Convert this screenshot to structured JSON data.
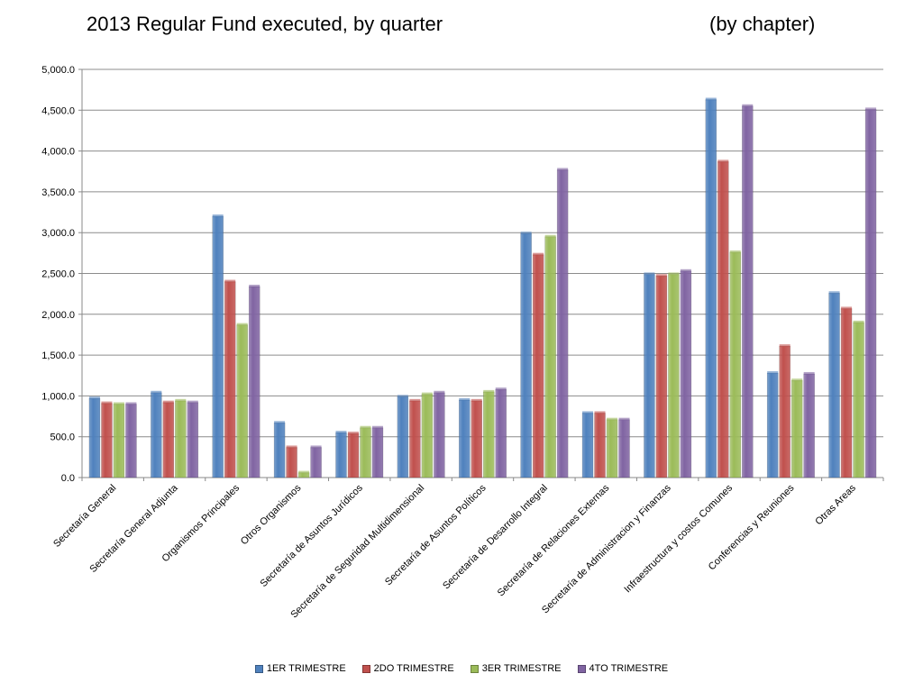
{
  "header": {
    "title": "2013 Regular Fund executed, by quarter",
    "subtitle": "(by chapter)"
  },
  "chart_data": {
    "type": "bar",
    "title": "2013 Regular Fund executed, by quarter",
    "subtitle": "(by chapter)",
    "ylim": [
      0,
      5000
    ],
    "y_ticks": [
      "0.0",
      "500.0",
      "1,000.0",
      "1,500.0",
      "2,000.0",
      "2,500.0",
      "3,000.0",
      "3,500.0",
      "4,000.0",
      "4,500.0",
      "5,000.0"
    ],
    "y_tick_values": [
      0,
      500,
      1000,
      1500,
      2000,
      2500,
      3000,
      3500,
      4000,
      4500,
      5000
    ],
    "grid": true,
    "legend_position": "bottom",
    "categories": [
      "Secretaría General",
      "Secretaría General Adjunta",
      "Organismos Principales",
      "Otros Organismos",
      "Secretaría de Asuntos Jurídicos",
      "Secretaría de Seguridad Multidimensional",
      "Secretaría de Asuntos Políticos",
      "Secretaría de Desarrollo Integral",
      "Secretaría de Relaciones Externas",
      "Secretaría de Administracion y Finanzas",
      "Infraestructura y costos Comunes",
      "Conferencias y Reuniones",
      "Otras Areas"
    ],
    "series": [
      {
        "name": "1ER TRIMESTRE",
        "color": "#4F81BD",
        "values": [
          970,
          1040,
          3200,
          670,
          550,
          990,
          950,
          2990,
          790,
          2490,
          4630,
          1280,
          2260
        ]
      },
      {
        "name": "2DO TRIMESTRE",
        "color": "#C0504D",
        "values": [
          910,
          920,
          2400,
          370,
          540,
          940,
          940,
          2730,
          790,
          2470,
          3870,
          1610,
          2070
        ]
      },
      {
        "name": "3ER TRIMESTRE",
        "color": "#9BBB59",
        "values": [
          900,
          940,
          1870,
          60,
          610,
          1020,
          1050,
          2950,
          710,
          2490,
          2760,
          1190,
          1900
        ]
      },
      {
        "name": "4TO TRIMESTRE",
        "color": "#8064A2",
        "values": [
          900,
          920,
          2340,
          370,
          610,
          1040,
          1080,
          3770,
          710,
          2530,
          4550,
          1270,
          4510
        ]
      }
    ]
  }
}
